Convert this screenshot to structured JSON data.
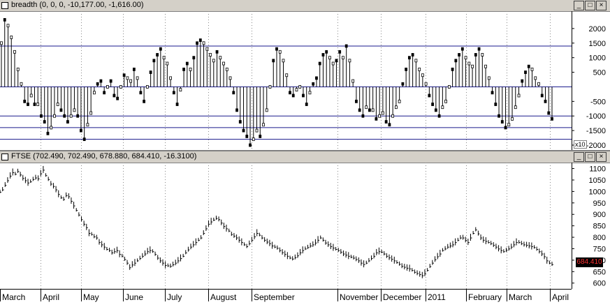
{
  "pane1": {
    "title": "breadth (0, 0, 0, -10,177.00, -1,616.00)",
    "y_ticks": [
      2000,
      1500,
      1000,
      500,
      -500,
      -1000,
      -1500,
      -2000
    ],
    "y_tick_labels": [
      "2000",
      "1500",
      "1000",
      "500",
      "-500",
      "-1000",
      "-1500",
      "-2000"
    ],
    "scale_note": "x10",
    "buttons": {
      "minimize": "_",
      "maximize": "□",
      "close": "×"
    }
  },
  "pane2": {
    "title": "FTSE (702.490, 702.490, 678.880, 684.410, -16.3100)",
    "y_ticks": [
      1100,
      1050,
      1000,
      950,
      900,
      850,
      800,
      750,
      700,
      650,
      600
    ],
    "y_tick_labels": [
      "1100",
      "1050",
      "1000",
      "950",
      "900",
      "850",
      "800",
      "750",
      "700",
      "650",
      "600"
    ],
    "last_price": "684.410",
    "buttons": {
      "minimize": "_",
      "maximize": "□",
      "close": "×"
    }
  },
  "x_axis": {
    "month_labels": [
      "March",
      "April",
      "May",
      "June",
      "July",
      "August",
      "September",
      "November",
      "December",
      "2011",
      "February",
      "March",
      "April"
    ]
  },
  "chart_data": [
    {
      "type": "bar",
      "title": "breadth (0, 0, 0, -10,177.00, -1,616.00)",
      "ylim": [
        -2000,
        2500
      ],
      "reference_lines": [
        1400,
        0,
        -1000,
        -1400,
        -1800
      ],
      "values": [
        1500,
        2300,
        2100,
        1700,
        1200,
        600,
        100,
        -500,
        -600,
        -300,
        -600,
        -600,
        -1000,
        -1200,
        -1600,
        -1400,
        -1000,
        -600,
        -800,
        -1000,
        -1200,
        -1000,
        -800,
        -1000,
        -1500,
        -1800,
        -1300,
        -900,
        -200,
        100,
        200,
        -200,
        0,
        200,
        -300,
        -400,
        0,
        400,
        300,
        200,
        600,
        300,
        -200,
        -500,
        0,
        500,
        900,
        1100,
        1300,
        1000,
        800,
        300,
        -200,
        -600,
        -100,
        600,
        800,
        600,
        1000,
        1500,
        1600,
        1500,
        1300,
        1100,
        900,
        1200,
        1000,
        800,
        600,
        300,
        -200,
        -800,
        -1200,
        -1500,
        -1700,
        -2000,
        -1800,
        -1500,
        -1700,
        -1300,
        -800,
        0,
        900,
        1300,
        1200,
        900,
        400,
        -200,
        -300,
        -100,
        0,
        -300,
        -600,
        -200,
        100,
        300,
        800,
        1100,
        1200,
        1000,
        800,
        900,
        1200,
        1000,
        1400,
        900,
        200,
        -500,
        -800,
        -1000,
        -700,
        -800,
        -800,
        -1100,
        -1000,
        -900,
        -1200,
        -1300,
        -1000,
        -700,
        -500,
        100,
        600,
        1000,
        1100,
        900,
        600,
        400,
        100,
        -300,
        -600,
        -800,
        -1000,
        -700,
        -500,
        0,
        600,
        900,
        1100,
        1300,
        1000,
        800,
        700,
        1100,
        1300,
        1100,
        700,
        300,
        -200,
        -600,
        -1000,
        -1200,
        -1400,
        -1300,
        -1100,
        -700,
        -300,
        200,
        500,
        700,
        600,
        300,
        100,
        -300,
        -500,
        -900,
        -1100
      ]
    },
    {
      "type": "line",
      "title": "FTSE (702.490, 702.490, 678.880, 684.410, -16.3100)",
      "ylim": [
        590,
        1120
      ],
      "last_value": 684.41,
      "values": [
        1000,
        1010,
        1030,
        1050,
        1070,
        1085,
        1078,
        1090,
        1075,
        1060,
        1050,
        1040,
        1045,
        1055,
        1062,
        1058,
        1080,
        1096,
        1072,
        1055,
        1035,
        1025,
        1010,
        990,
        975,
        968,
        985,
        980,
        960,
        940,
        920,
        900,
        880,
        860,
        845,
        820,
        815,
        805,
        800,
        780,
        770,
        760,
        750,
        745,
        735,
        740,
        745,
        728,
        720,
        706,
        690,
        670,
        682,
        690,
        700,
        710,
        720,
        730,
        740,
        745,
        740,
        728,
        712,
        700,
        690,
        680,
        678,
        676,
        683,
        690,
        700,
        710,
        720,
        735,
        748,
        760,
        770,
        780,
        790,
        800,
        820,
        840,
        860,
        870,
        878,
        885,
        880,
        865,
        850,
        840,
        830,
        815,
        808,
        800,
        790,
        780,
        770,
        762,
        775,
        790,
        805,
        820,
        812,
        800,
        790,
        782,
        775,
        765,
        760,
        755,
        745,
        736,
        728,
        720,
        712,
        708,
        714,
        722,
        735,
        745,
        752,
        758,
        765,
        770,
        778,
        790,
        800,
        790,
        778,
        770,
        762,
        756,
        750,
        745,
        738,
        730,
        725,
        720,
        716,
        712,
        706,
        700,
        690,
        684,
        690,
        700,
        710,
        720,
        735,
        740,
        738,
        730,
        720,
        713,
        707,
        700,
        692,
        685,
        676,
        672,
        668,
        665,
        658,
        650,
        645,
        640,
        635,
        645,
        658,
        675,
        690,
        705,
        718,
        730,
        745,
        752,
        760,
        765,
        770,
        780,
        790,
        800,
        800,
        790,
        780,
        800,
        820,
        835,
        818,
        800,
        790,
        785,
        780,
        775,
        768,
        760,
        752,
        745,
        740,
        745,
        752,
        760,
        770,
        780,
        780,
        775,
        770,
        768,
        765,
        762,
        758,
        750,
        740,
        730,
        718,
        700,
        690,
        684
      ]
    }
  ]
}
